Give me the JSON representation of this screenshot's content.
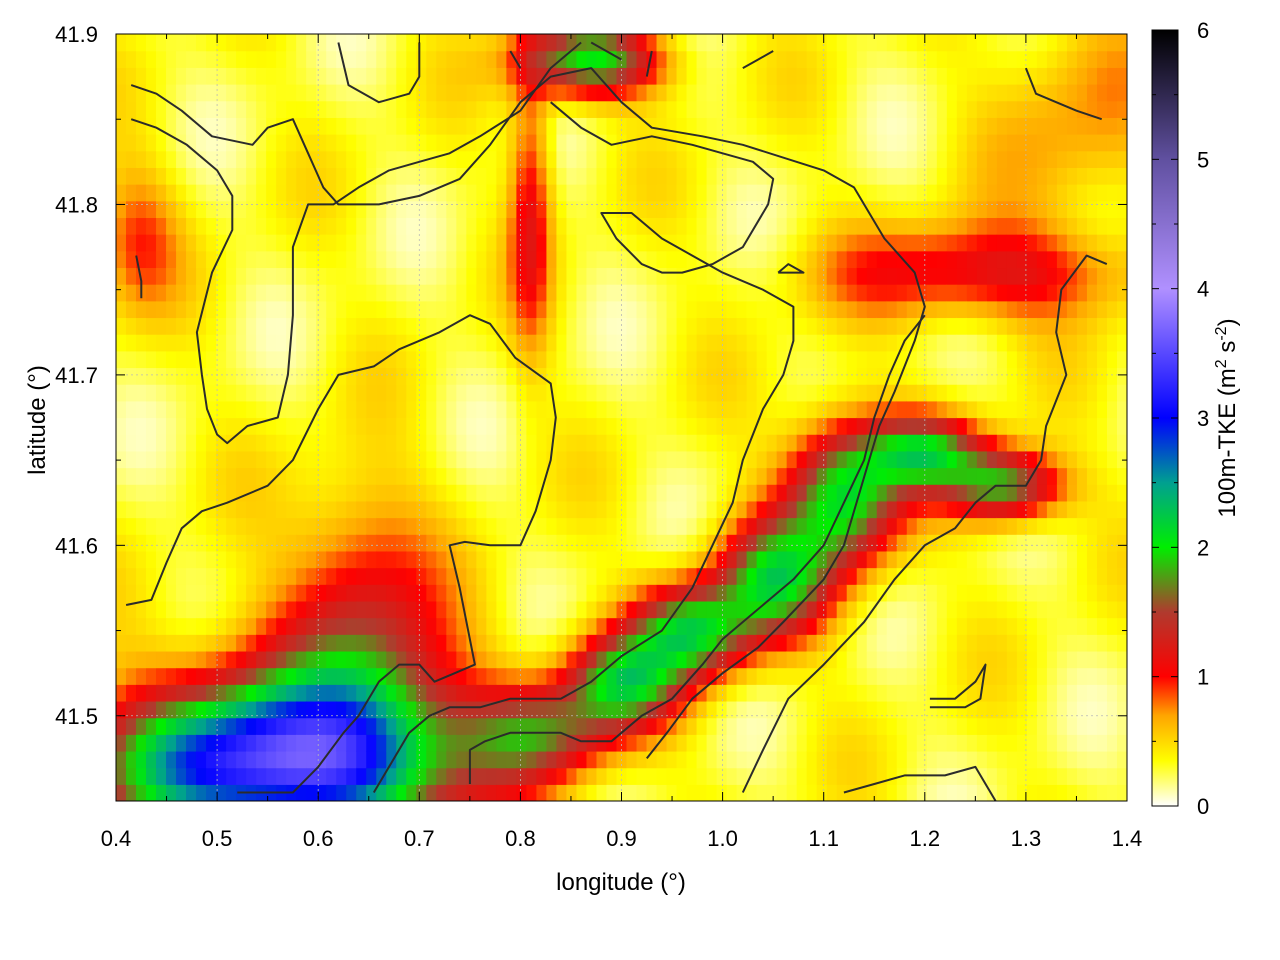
{
  "chart_data": {
    "type": "heatmap",
    "title": "",
    "xlabel": "longitude (°)",
    "ylabel": "latitude (°)",
    "xlim": [
      0.4,
      1.4
    ],
    "ylim": [
      41.45,
      41.9
    ],
    "x_ticks": [
      "0.4",
      "0.5",
      "0.6",
      "0.7",
      "0.8",
      "0.9",
      "1.0",
      "1.1",
      "1.2",
      "1.3",
      "1.4"
    ],
    "y_ticks": [
      "41.5",
      "41.6",
      "41.7",
      "41.8",
      "41.9"
    ],
    "grid": true,
    "colorbar": {
      "label_main": "100m-TKE (m",
      "label_sup1": "2",
      "label_mid": " s",
      "label_sup2": "-2",
      "label_end": ")",
      "range": [
        0,
        6
      ],
      "ticks": [
        "0",
        "1",
        "2",
        "3",
        "4",
        "5",
        "6"
      ],
      "stops": [
        {
          "v": 0.0,
          "c": "#ffffff"
        },
        {
          "v": 0.35,
          "c": "#ffff00"
        },
        {
          "v": 0.7,
          "c": "#ffa500"
        },
        {
          "v": 1.0,
          "c": "#ff0000"
        },
        {
          "v": 1.5,
          "c": "#b03a2e"
        },
        {
          "v": 2.0,
          "c": "#00ee00"
        },
        {
          "v": 2.5,
          "c": "#00a090"
        },
        {
          "v": 3.0,
          "c": "#0000ff"
        },
        {
          "v": 4.0,
          "c": "#b090ff"
        },
        {
          "v": 5.0,
          "c": "#6050a0"
        },
        {
          "v": 6.0,
          "c": "#000000"
        }
      ]
    },
    "field_features": [
      {
        "lon": 0.55,
        "lat": 41.47,
        "slon": 0.12,
        "slat": 0.03,
        "amp": 2.6
      },
      {
        "lon": 0.6,
        "lat": 41.5,
        "slon": 0.1,
        "slat": 0.04,
        "amp": 1.0
      },
      {
        "lon": 0.66,
        "lat": 41.52,
        "slon": 0.05,
        "slat": 0.04,
        "amp": 0.6
      },
      {
        "lon": 0.9,
        "lat": 41.52,
        "slon": 0.04,
        "slat": 0.02,
        "amp": 1.6
      },
      {
        "lon": 0.97,
        "lat": 41.55,
        "slon": 0.04,
        "slat": 0.02,
        "amp": 1.7
      },
      {
        "lon": 1.05,
        "lat": 41.58,
        "slon": 0.04,
        "slat": 0.025,
        "amp": 1.6
      },
      {
        "lon": 1.12,
        "lat": 41.63,
        "slon": 0.04,
        "slat": 0.03,
        "amp": 1.8
      },
      {
        "lon": 1.2,
        "lat": 41.655,
        "slon": 0.04,
        "slat": 0.015,
        "amp": 1.5
      },
      {
        "lon": 1.28,
        "lat": 41.635,
        "slon": 0.04,
        "slat": 0.015,
        "amp": 1.6
      },
      {
        "lon": 1.25,
        "lat": 41.76,
        "slon": 0.1,
        "slat": 0.02,
        "amp": 0.9
      },
      {
        "lon": 0.82,
        "lat": 41.49,
        "slon": 0.05,
        "slat": 0.02,
        "amp": 1.1
      },
      {
        "lon": 0.87,
        "lat": 41.885,
        "slon": 0.05,
        "slat": 0.015,
        "amp": 1.7
      },
      {
        "lon": 0.81,
        "lat": 41.8,
        "slon": 0.015,
        "slat": 0.06,
        "amp": 0.8
      },
      {
        "lon": 0.42,
        "lat": 41.78,
        "slon": 0.03,
        "slat": 0.03,
        "amp": 0.6
      },
      {
        "lon": 1.35,
        "lat": 41.85,
        "slon": 0.06,
        "slat": 0.05,
        "amp": 0.4
      },
      {
        "lon": 0.64,
        "lat": 41.59,
        "slon": 0.05,
        "slat": 0.04,
        "amp": 0.6
      }
    ],
    "contours": [
      [
        [
          0.415,
          41.87
        ],
        [
          0.44,
          41.865
        ],
        [
          0.465,
          41.855
        ],
        [
          0.495,
          41.84
        ],
        [
          0.535,
          41.835
        ],
        [
          0.55,
          41.845
        ],
        [
          0.575,
          41.85
        ],
        [
          0.59,
          41.83
        ],
        [
          0.605,
          41.81
        ],
        [
          0.62,
          41.8
        ],
        [
          0.66,
          41.8
        ],
        [
          0.7,
          41.805
        ],
        [
          0.72,
          41.81
        ],
        [
          0.74,
          41.815
        ],
        [
          0.77,
          41.835
        ],
        [
          0.8,
          41.86
        ],
        [
          0.83,
          41.875
        ],
        [
          0.87,
          41.88
        ],
        [
          0.9,
          41.86
        ],
        [
          0.93,
          41.845
        ],
        [
          0.98,
          41.84
        ],
        [
          1.02,
          41.835
        ],
        [
          1.1,
          41.82
        ],
        [
          1.13,
          41.81
        ],
        [
          1.16,
          41.78
        ],
        [
          1.19,
          41.76
        ],
        [
          1.2,
          41.74
        ],
        [
          1.19,
          41.72
        ],
        [
          1.17,
          41.69
        ],
        [
          1.155,
          41.67
        ],
        [
          1.14,
          41.64
        ],
        [
          1.12,
          41.6
        ],
        [
          1.1,
          41.58
        ],
        [
          1.06,
          41.555
        ],
        [
          1.035,
          41.54
        ],
        [
          1.0,
          41.525
        ],
        [
          0.97,
          41.51
        ],
        [
          0.945,
          41.49
        ],
        [
          0.925,
          41.475
        ]
      ],
      [
        [
          0.415,
          41.85
        ],
        [
          0.44,
          41.845
        ],
        [
          0.47,
          41.835
        ],
        [
          0.5,
          41.82
        ],
        [
          0.515,
          41.805
        ],
        [
          0.515,
          41.785
        ],
        [
          0.495,
          41.76
        ],
        [
          0.48,
          41.725
        ],
        [
          0.485,
          41.7
        ],
        [
          0.49,
          41.68
        ],
        [
          0.5,
          41.665
        ],
        [
          0.51,
          41.66
        ],
        [
          0.53,
          41.67
        ],
        [
          0.56,
          41.675
        ],
        [
          0.57,
          41.7
        ],
        [
          0.575,
          41.735
        ],
        [
          0.575,
          41.775
        ],
        [
          0.59,
          41.8
        ],
        [
          0.615,
          41.8
        ],
        [
          0.64,
          41.81
        ],
        [
          0.67,
          41.82
        ],
        [
          0.7,
          41.825
        ],
        [
          0.73,
          41.83
        ],
        [
          0.76,
          41.84
        ],
        [
          0.8,
          41.855
        ],
        [
          0.83,
          41.88
        ],
        [
          0.86,
          41.895
        ]
      ],
      [
        [
          0.41,
          41.565
        ],
        [
          0.435,
          41.568
        ],
        [
          0.45,
          41.59
        ],
        [
          0.465,
          41.61
        ],
        [
          0.485,
          41.62
        ],
        [
          0.51,
          41.625
        ],
        [
          0.55,
          41.635
        ],
        [
          0.575,
          41.65
        ],
        [
          0.6,
          41.68
        ],
        [
          0.62,
          41.7
        ],
        [
          0.655,
          41.705
        ],
        [
          0.68,
          41.715
        ],
        [
          0.72,
          41.725
        ],
        [
          0.75,
          41.735
        ],
        [
          0.77,
          41.73
        ],
        [
          0.795,
          41.71
        ],
        [
          0.83,
          41.695
        ],
        [
          0.835,
          41.675
        ],
        [
          0.83,
          41.65
        ],
        [
          0.815,
          41.62
        ],
        [
          0.8,
          41.6
        ],
        [
          0.77,
          41.6
        ],
        [
          0.745,
          41.602
        ],
        [
          0.73,
          41.6
        ],
        [
          0.74,
          41.575
        ],
        [
          0.755,
          41.53
        ],
        [
          0.735,
          41.525
        ],
        [
          0.715,
          41.52
        ],
        [
          0.7,
          41.53
        ],
        [
          0.68,
          41.53
        ],
        [
          0.66,
          41.52
        ],
        [
          0.64,
          41.5
        ],
        [
          0.625,
          41.49
        ],
        [
          0.6,
          41.47
        ],
        [
          0.575,
          41.455
        ],
        [
          0.54,
          41.455
        ],
        [
          0.52,
          41.455
        ]
      ],
      [
        [
          0.655,
          41.455
        ],
        [
          0.67,
          41.47
        ],
        [
          0.69,
          41.49
        ],
        [
          0.71,
          41.5
        ],
        [
          0.73,
          41.505
        ],
        [
          0.76,
          41.505
        ],
        [
          0.79,
          41.51
        ],
        [
          0.84,
          41.51
        ],
        [
          0.87,
          41.52
        ],
        [
          0.9,
          41.535
        ],
        [
          0.94,
          41.55
        ],
        [
          0.97,
          41.575
        ],
        [
          0.99,
          41.6
        ],
        [
          1.01,
          41.625
        ],
        [
          1.02,
          41.65
        ],
        [
          1.04,
          41.68
        ],
        [
          1.06,
          41.7
        ],
        [
          1.07,
          41.72
        ],
        [
          1.07,
          41.74
        ],
        [
          1.04,
          41.75
        ],
        [
          1.0,
          41.76
        ],
        [
          0.97,
          41.77
        ],
        [
          0.94,
          41.78
        ],
        [
          0.91,
          41.795
        ],
        [
          0.88,
          41.795
        ],
        [
          0.895,
          41.78
        ],
        [
          0.92,
          41.765
        ],
        [
          0.94,
          41.76
        ],
        [
          0.96,
          41.76
        ],
        [
          0.99,
          41.765
        ],
        [
          1.02,
          41.775
        ],
        [
          1.045,
          41.8
        ],
        [
          1.05,
          41.815
        ],
        [
          1.03,
          41.825
        ],
        [
          1.0,
          41.83
        ],
        [
          0.97,
          41.835
        ],
        [
          0.93,
          41.84
        ],
        [
          0.89,
          41.835
        ],
        [
          0.86,
          41.845
        ],
        [
          0.83,
          41.86
        ]
      ],
      [
        [
          0.75,
          41.46
        ],
        [
          0.75,
          41.48
        ],
        [
          0.765,
          41.485
        ],
        [
          0.79,
          41.49
        ],
        [
          0.82,
          41.49
        ],
        [
          0.84,
          41.49
        ],
        [
          0.86,
          41.485
        ],
        [
          0.89,
          41.485
        ],
        [
          0.92,
          41.5
        ],
        [
          0.95,
          41.51
        ],
        [
          0.98,
          41.53
        ],
        [
          1.0,
          41.545
        ],
        [
          1.03,
          41.56
        ],
        [
          1.07,
          41.58
        ],
        [
          1.1,
          41.6
        ],
        [
          1.12,
          41.625
        ],
        [
          1.14,
          41.65
        ],
        [
          1.15,
          41.675
        ],
        [
          1.165,
          41.7
        ],
        [
          1.18,
          41.72
        ],
        [
          1.2,
          41.735
        ]
      ],
      [
        [
          1.02,
          41.455
        ],
        [
          1.04,
          41.48
        ],
        [
          1.065,
          41.51
        ],
        [
          1.1,
          41.53
        ],
        [
          1.14,
          41.555
        ],
        [
          1.17,
          41.58
        ],
        [
          1.2,
          41.6
        ],
        [
          1.23,
          41.61
        ],
        [
          1.25,
          41.625
        ],
        [
          1.27,
          41.635
        ],
        [
          1.3,
          41.635
        ],
        [
          1.315,
          41.65
        ],
        [
          1.32,
          41.67
        ],
        [
          1.33,
          41.685
        ],
        [
          1.34,
          41.7
        ],
        [
          1.33,
          41.725
        ],
        [
          1.335,
          41.75
        ],
        [
          1.36,
          41.77
        ],
        [
          1.38,
          41.765
        ]
      ],
      [
        [
          1.12,
          41.455
        ],
        [
          1.15,
          41.46
        ],
        [
          1.18,
          41.465
        ],
        [
          1.22,
          41.465
        ],
        [
          1.25,
          41.47
        ],
        [
          1.27,
          41.45
        ]
      ],
      [
        [
          1.205,
          41.51
        ],
        [
          1.23,
          41.51
        ],
        [
          1.25,
          41.52
        ],
        [
          1.26,
          41.53
        ],
        [
          1.255,
          41.51
        ],
        [
          1.24,
          41.505
        ],
        [
          1.205,
          41.505
        ]
      ],
      [
        [
          1.055,
          41.76
        ],
        [
          1.065,
          41.765
        ],
        [
          1.08,
          41.76
        ],
        [
          1.055,
          41.76
        ]
      ],
      [
        [
          1.3,
          41.88
        ],
        [
          1.31,
          41.865
        ],
        [
          1.33,
          41.86
        ],
        [
          1.35,
          41.855
        ],
        [
          1.375,
          41.85
        ]
      ],
      [
        [
          0.62,
          41.895
        ],
        [
          0.63,
          41.87
        ],
        [
          0.66,
          41.86
        ],
        [
          0.69,
          41.865
        ],
        [
          0.7,
          41.875
        ],
        [
          0.7,
          41.895
        ]
      ],
      [
        [
          0.79,
          41.89
        ],
        [
          0.8,
          41.88
        ]
      ],
      [
        [
          0.87,
          41.895
        ],
        [
          0.9,
          41.885
        ]
      ],
      [
        [
          0.93,
          41.89
        ],
        [
          0.925,
          41.875
        ]
      ],
      [
        [
          1.02,
          41.88
        ],
        [
          1.035,
          41.885
        ],
        [
          1.05,
          41.89
        ]
      ],
      [
        [
          0.42,
          41.77
        ],
        [
          0.425,
          41.755
        ],
        [
          0.425,
          41.745
        ]
      ]
    ]
  }
}
